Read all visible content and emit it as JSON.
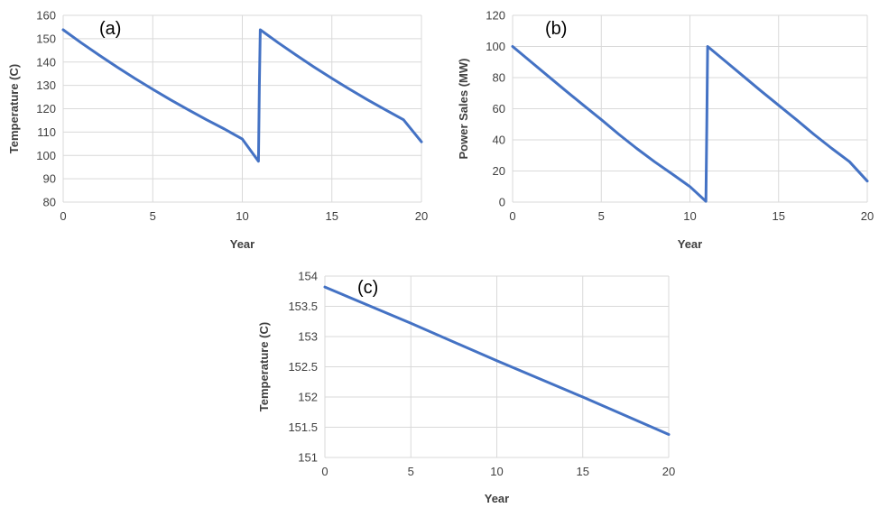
{
  "colors": {
    "series": "#4472c4",
    "grid": "#d9d9d9",
    "text": "#404040"
  },
  "chart_data": [
    {
      "type": "line",
      "panel_label": "(a)",
      "xlabel": "Year",
      "ylabel": "Temperature (C)",
      "xlim": [
        0,
        20
      ],
      "ylim": [
        80,
        160
      ],
      "xticks": [
        0,
        5,
        10,
        15,
        20
      ],
      "yticks": [
        80,
        90,
        100,
        110,
        120,
        130,
        140,
        150,
        160
      ],
      "grid": "vertical",
      "series": [
        {
          "x": [
            0,
            1,
            2,
            3,
            4,
            5,
            6,
            7,
            8,
            9,
            10,
            10.9,
            10.95,
            11,
            12,
            13,
            14,
            15,
            16,
            17,
            18,
            19,
            20
          ],
          "y": [
            153.8,
            148.3,
            143.0,
            137.9,
            133.0,
            128.3,
            123.8,
            119.5,
            115.3,
            111.3,
            107.0,
            97.5,
            130,
            153.8,
            148.3,
            143.0,
            137.9,
            133.0,
            128.3,
            123.8,
            119.5,
            115.3,
            105.8
          ]
        }
      ]
    },
    {
      "type": "line",
      "panel_label": "(b)",
      "xlabel": "Year",
      "ylabel": "Power Sales (MW)",
      "xlim": [
        0,
        20
      ],
      "ylim": [
        0,
        120
      ],
      "xticks": [
        0,
        5,
        10,
        15,
        20
      ],
      "yticks": [
        0,
        20,
        40,
        60,
        80,
        100,
        120
      ],
      "grid": "vertical",
      "series": [
        {
          "x": [
            0,
            1,
            2,
            3,
            4,
            5,
            6,
            7,
            8,
            9,
            10,
            10.9,
            10.95,
            11,
            12,
            13,
            14,
            15,
            16,
            17,
            18,
            19,
            20
          ],
          "y": [
            100,
            90.5,
            81.0,
            71.5,
            62.2,
            53.0,
            43.5,
            34.5,
            26.0,
            18.0,
            10.0,
            0.5,
            50,
            100,
            90.5,
            81.0,
            71.5,
            62.2,
            53.0,
            43.5,
            34.5,
            26.0,
            13.5
          ]
        }
      ]
    },
    {
      "type": "line",
      "panel_label": "(c)",
      "xlabel": "Year",
      "ylabel": "Temperature (C)",
      "xlim": [
        0,
        20
      ],
      "ylim": [
        151,
        154
      ],
      "xticks": [
        0,
        5,
        10,
        15,
        20
      ],
      "yticks": [
        151,
        151.5,
        152,
        152.5,
        153,
        153.5,
        154
      ],
      "grid": "vertical",
      "series": [
        {
          "x": [
            0,
            5,
            10,
            15,
            20
          ],
          "y": [
            153.82,
            153.22,
            152.6,
            152.0,
            151.38
          ]
        }
      ]
    }
  ]
}
